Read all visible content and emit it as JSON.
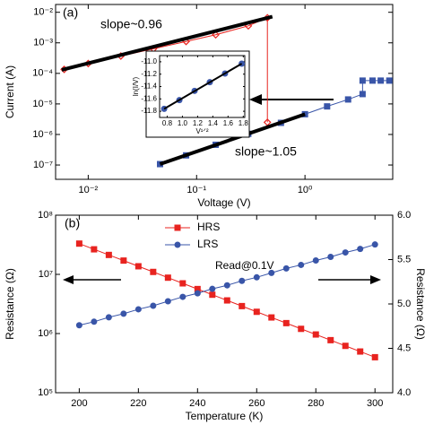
{
  "chart_data": [
    {
      "type": "line",
      "xlog": true,
      "ylog": true,
      "xlabel": "Voltage (V)",
      "ylabel": "Current (A)",
      "annotations": [
        "(a)",
        "slope~0.96",
        "slope~1.05"
      ],
      "xlim": [
        0.005,
        6.45
      ],
      "ylim": [
        3.4e-08,
        0.018
      ],
      "xticks": [
        {
          "value": 0.01,
          "label": "10⁻²"
        },
        {
          "value": 0.1,
          "label": "10⁻¹"
        },
        {
          "value": 1,
          "label": "10⁰"
        }
      ],
      "yticks": [
        {
          "value": 1e-07,
          "label": "10⁻⁷"
        },
        {
          "value": 1e-06,
          "label": "10⁻⁶"
        },
        {
          "value": 1e-05,
          "label": "10⁻⁵"
        },
        {
          "value": 0.0001,
          "label": "10⁻⁴"
        },
        {
          "value": 0.001,
          "label": "10⁻³"
        },
        {
          "value": 0.01,
          "label": "10⁻²"
        }
      ],
      "series": [
        {
          "color": "#e8231f",
          "marker": "diamond",
          "x": [
            0.006,
            0.01,
            0.02,
            0.04,
            0.08,
            0.15,
            0.3,
            0.45,
            0.45
          ],
          "values": [
            0.000135,
            0.00021,
            0.00037,
            0.00064,
            0.00111,
            0.00184,
            0.0036,
            0.0066,
            2.5e-06
          ]
        },
        {
          "color": "#3955a8",
          "marker": "square",
          "x": [
            0.046,
            0.08,
            0.15,
            0.3,
            0.6,
            1.0,
            1.6,
            2.5,
            3.4,
            3.4,
            4.2,
            5.0,
            6.0
          ],
          "values": [
            1.07e-07,
            2.07e-07,
            4.6e-07,
            1.05e-06,
            2.4e-06,
            4.6e-06,
            8.3e-06,
            1.4e-05,
            2.1e-05,
            5.8e-05,
            5.8e-05,
            5.8e-05,
            5.8e-05
          ]
        },
        {
          "color": "#000000",
          "marker": "none",
          "x": [
            0.0057,
            0.5
          ],
          "values": [
            0.00013,
            0.0072
          ]
        },
        {
          "color": "#000000",
          "marker": "none",
          "x": [
            0.046,
            1.0
          ],
          "values": [
            1.07e-07,
            4.6e-06
          ]
        }
      ]
    },
    {
      "type": "line",
      "xlabel": "V¹ᐟ²",
      "ylabel": "ln(I/V)",
      "xlim": [
        0.7,
        1.82
      ],
      "ylim": [
        -11.9,
        -10.9
      ],
      "xticks": [
        0.8,
        {
          "value": 1,
          "label": "1.0"
        },
        1.2,
        1.4,
        1.6,
        1.8
      ],
      "yticks": [
        {
          "value": -11,
          "label": "-11.0"
        },
        -11.2,
        -11.4,
        -11.6,
        -11.8
      ],
      "series": [
        {
          "color": "#3955a8",
          "marker": "circle",
          "x": [
            0.76,
            0.96,
            1.16,
            1.36,
            1.56,
            1.78
          ],
          "values": [
            -11.76,
            -11.62,
            -11.47,
            -11.33,
            -11.19,
            -11.03
          ]
        },
        {
          "color": "#000000",
          "marker": "none",
          "x": [
            0.76,
            1.78
          ],
          "values": [
            -11.76,
            -11.03
          ]
        }
      ]
    },
    {
      "type": "line",
      "ylog": true,
      "legend": "top",
      "xlabel": "Temperature (K)",
      "ylabel": "Resistance (Ω)",
      "y2label": "Resistance (Ω)",
      "annotations": [
        "(b)",
        "Read@0.1V"
      ],
      "xlim": [
        192,
        306
      ],
      "ylim": [
        100000,
        100000000
      ],
      "y2lim": [
        4,
        6
      ],
      "xticks": [
        200,
        220,
        240,
        260,
        280,
        300
      ],
      "yticks": [
        {
          "value": 100000,
          "label": "10⁵"
        },
        {
          "value": 1000000,
          "label": "10⁶"
        },
        {
          "value": 10000000,
          "label": "10⁷"
        },
        {
          "value": 100000000,
          "label": "10⁸"
        }
      ],
      "y2ticks": [
        {
          "value": 4,
          "label": "4.0"
        },
        4.5,
        {
          "value": 5,
          "label": "5.0"
        },
        5.5,
        {
          "value": 6,
          "label": "6.0"
        }
      ],
      "x": [
        200,
        205,
        210,
        215,
        220,
        225,
        230,
        235,
        240,
        245,
        250,
        255,
        260,
        265,
        270,
        275,
        280,
        285,
        290,
        295,
        300
      ],
      "series": [
        {
          "name": "HRS",
          "color": "#e8231f",
          "marker": "square",
          "values": [
            33100000,
            26500000,
            21300000,
            17100000,
            13700000,
            11000000,
            8790000,
            7050000,
            5650000,
            4530000,
            3630000,
            2910000,
            2330000,
            1870000,
            1500000,
            1200000,
            964000,
            773000,
            619000,
            497000,
            398000
          ]
        },
        {
          "name": "LRS",
          "color": "#3955a8",
          "marker": "circle",
          "axis": "y2",
          "values": [
            4.76,
            4.8,
            4.85,
            4.89,
            4.94,
            4.98,
            5.03,
            5.08,
            5.12,
            5.17,
            5.21,
            5.26,
            5.3,
            5.35,
            5.4,
            5.44,
            5.49,
            5.53,
            5.58,
            5.62,
            5.67
          ]
        }
      ]
    }
  ]
}
